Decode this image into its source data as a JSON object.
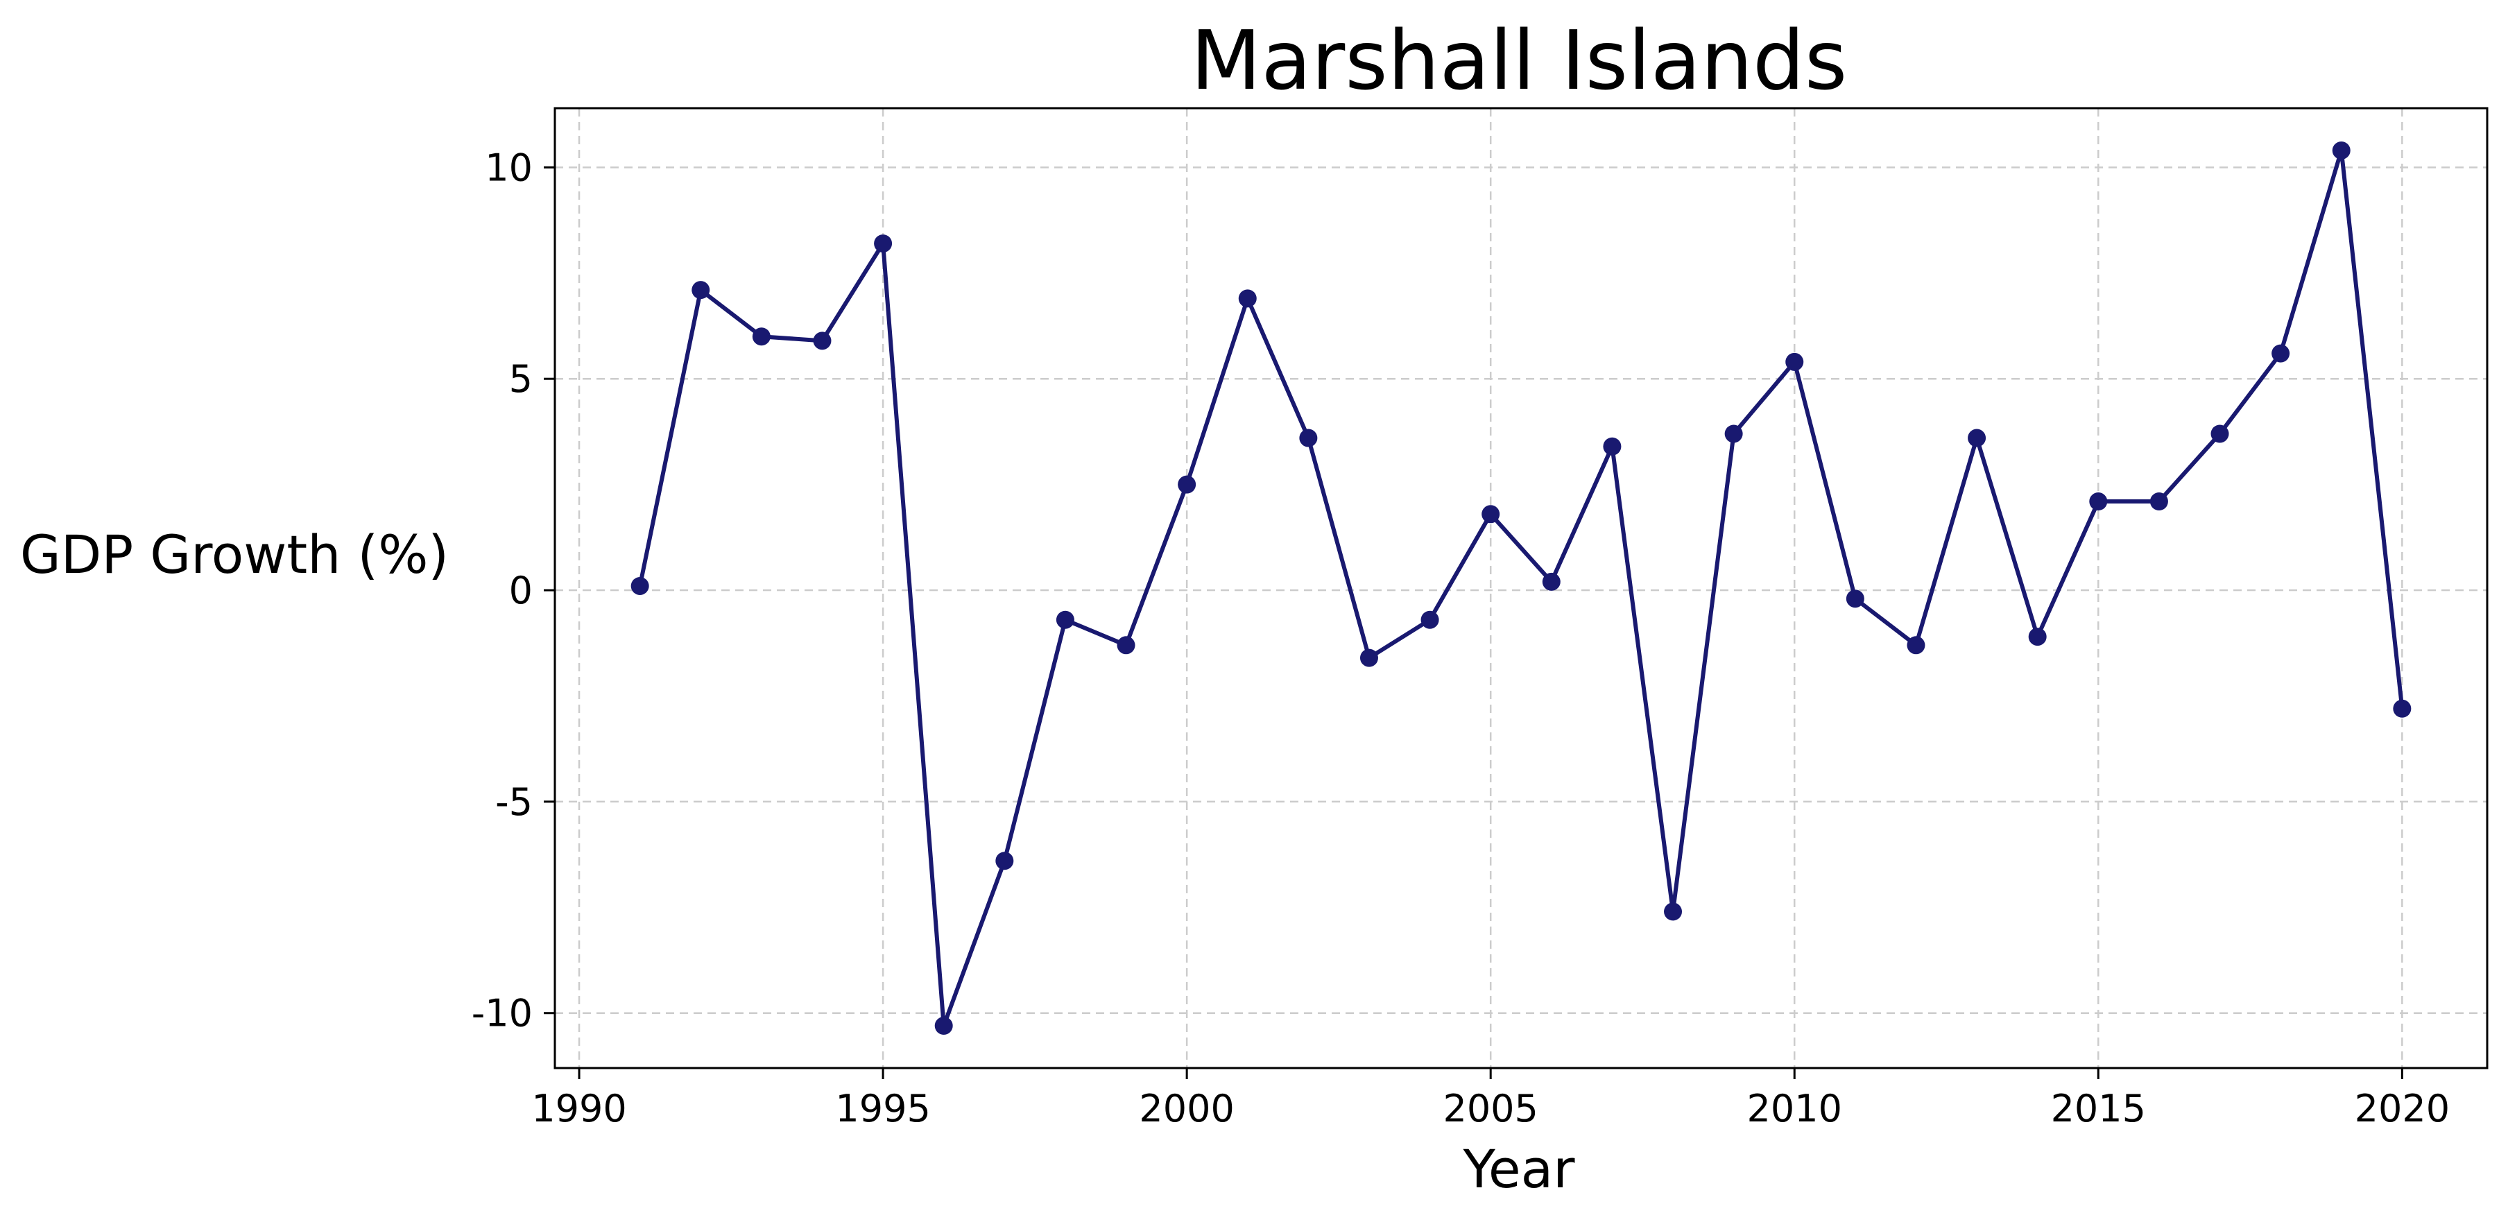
{
  "chart_data": {
    "type": "line",
    "title": "Marshall Islands",
    "xlabel": "Year",
    "ylabel": "GDP Growth (%)",
    "xlim": [
      1989.6,
      2021.4
    ],
    "ylim": [
      -11.3,
      11.4
    ],
    "x_ticks": [
      1990,
      1995,
      2000,
      2005,
      2010,
      2015,
      2020
    ],
    "y_ticks": [
      10,
      5,
      0,
      -5,
      -10
    ],
    "y_tick_labels": [
      "10",
      "5",
      "0",
      "-5",
      "-10"
    ],
    "grid": true,
    "legend": "none",
    "colors": {
      "line": "#191970",
      "grid": "#cccccc",
      "axes": "#000000"
    },
    "series": [
      {
        "x": [
          1991,
          1992,
          1993,
          1994,
          1995,
          1996,
          1997,
          1998,
          1999,
          2000,
          2001,
          2002,
          2003,
          2004,
          2005,
          2006,
          2007,
          2008,
          2009,
          2010,
          2011,
          2012,
          2013,
          2014,
          2015,
          2016,
          2017,
          2018,
          2019,
          2020
        ],
        "values": [
          0.1,
          7.1,
          6.0,
          5.9,
          8.2,
          -10.3,
          -6.4,
          -0.7,
          -1.3,
          2.5,
          6.9,
          3.6,
          -1.6,
          -0.7,
          1.8,
          0.2,
          3.4,
          -7.6,
          3.7,
          5.4,
          -0.2,
          -1.3,
          3.6,
          -1.1,
          2.1,
          2.1,
          3.7,
          5.6,
          10.4,
          -2.8
        ]
      }
    ]
  }
}
